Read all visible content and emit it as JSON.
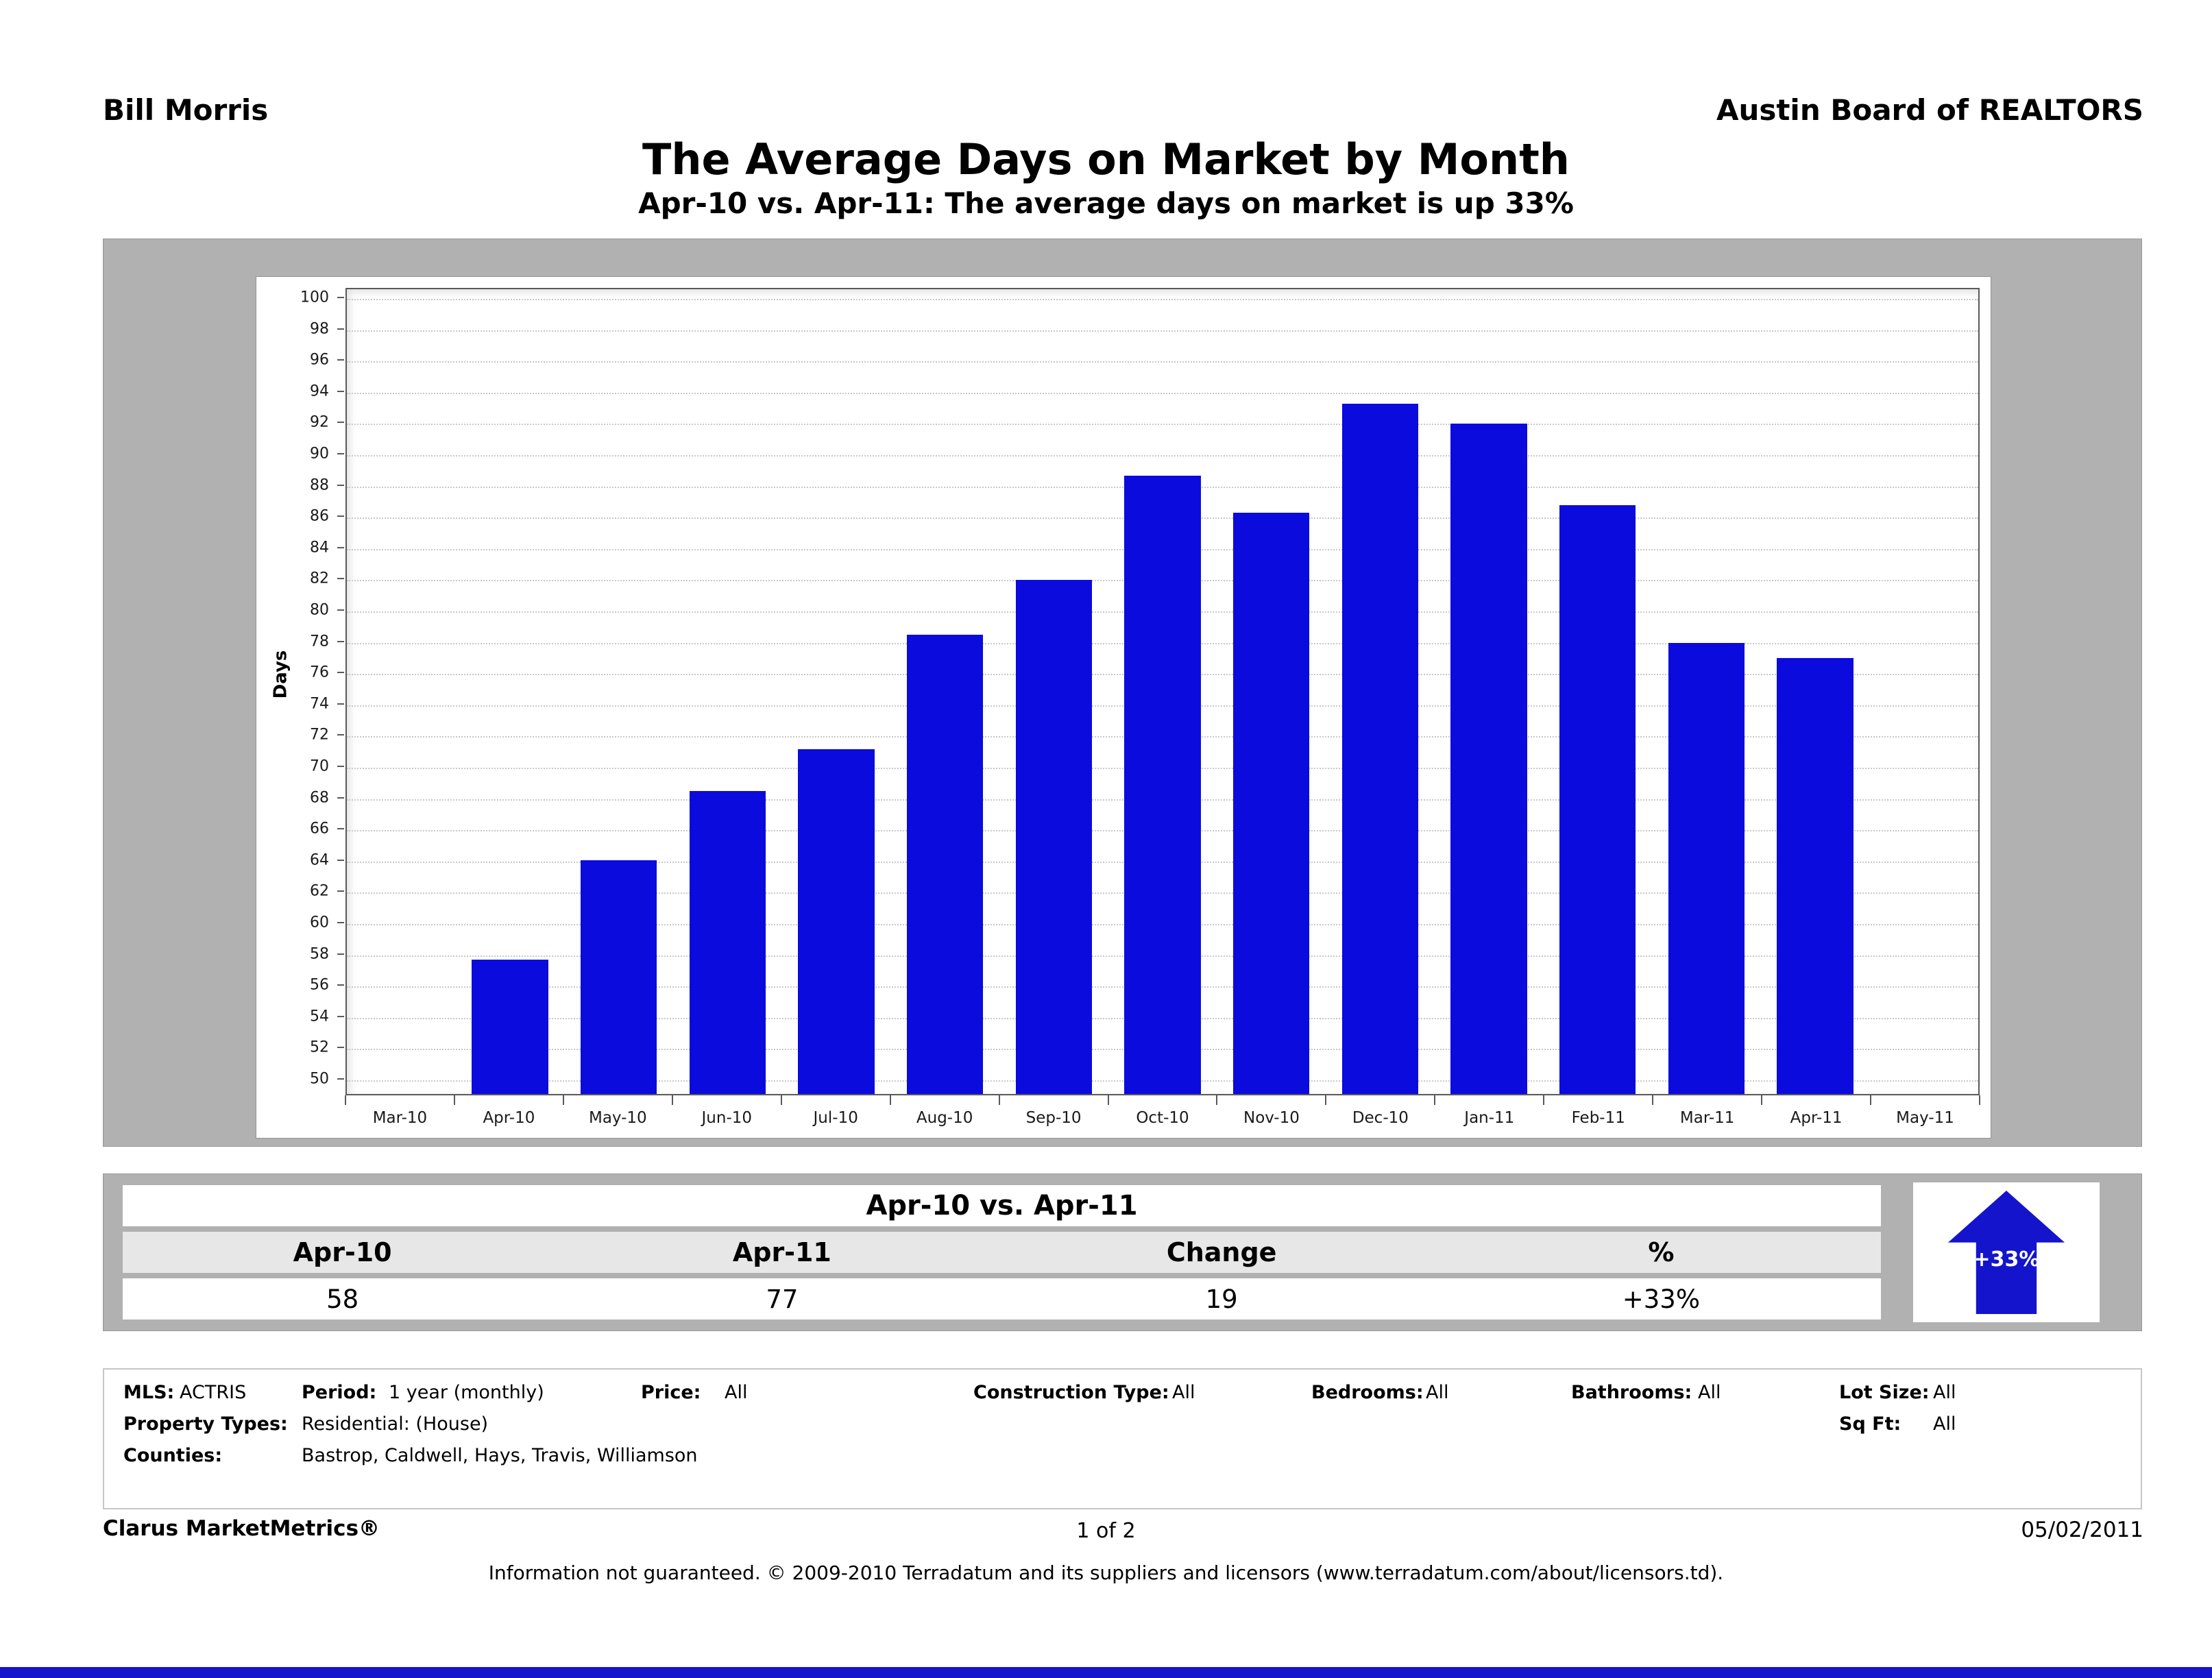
{
  "header": {
    "left": "Bill Morris",
    "right": "Austin Board of REALTORS"
  },
  "title": "The Average Days on Market by Month",
  "subtitle": "Apr-10 vs. Apr-11:  The average days on market is up 33%",
  "colors": {
    "bar": "#0b0bdd",
    "accent": "#1414cc",
    "panel_gray": "#b1b1b1"
  },
  "chart_data": {
    "type": "bar",
    "title": "The Average Days on Market by Month",
    "xlabel": "",
    "ylabel": "Days",
    "ylim": [
      50,
      100
    ],
    "ytick_step": 2,
    "grid": true,
    "legend_position": "none",
    "categories": [
      "Mar-10",
      "Apr-10",
      "May-10",
      "Jun-10",
      "Jul-10",
      "Aug-10",
      "Sep-10",
      "Oct-10",
      "Nov-10",
      "Dec-10",
      "Jan-11",
      "Feb-11",
      "Mar-11",
      "Apr-11",
      "May-11"
    ],
    "values": [
      null,
      57.7,
      64.1,
      68.5,
      71.2,
      78.5,
      82.0,
      88.7,
      86.3,
      93.3,
      92.0,
      86.8,
      78.0,
      77.0,
      null
    ],
    "bar_color": "#0b0bdd"
  },
  "summary_table": {
    "title": "Apr-10 vs. Apr-11",
    "columns": [
      "Apr-10",
      "Apr-11",
      "Change",
      "%"
    ],
    "values": [
      "58",
      "77",
      "19",
      "+33%"
    ],
    "badge": "+33%"
  },
  "criteria": {
    "mls_label": "MLS:",
    "mls": "ACTRIS",
    "period_label": "Period:",
    "period": "1 year (monthly)",
    "price_label": "Price:",
    "price": "All",
    "construction_label": "Construction Type:",
    "construction": "All",
    "bedrooms_label": "Bedrooms:",
    "bedrooms": "All",
    "bathrooms_label": "Bathrooms:",
    "bathrooms": "All",
    "lot_label": "Lot Size:",
    "lot": "All",
    "property_types_label": "Property Types:",
    "property_types": "Residential: (House)",
    "sqft_label": "Sq Ft:",
    "sqft": "All",
    "counties_label": "Counties:",
    "counties": "Bastrop, Caldwell, Hays, Travis, Williamson"
  },
  "footer": {
    "brand": "Clarus MarketMetrics®",
    "page": "1 of 2",
    "date": "05/02/2011",
    "disclaimer": "Information not guaranteed.  © 2009-2010 Terradatum and its suppliers and licensors (www.terradatum.com/about/licensors.td)."
  }
}
